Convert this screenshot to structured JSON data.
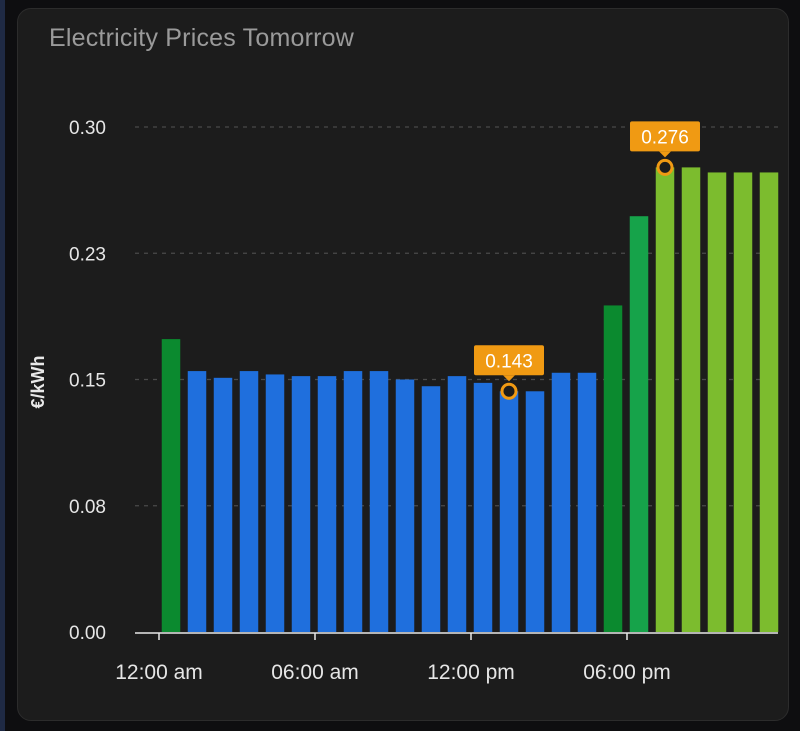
{
  "card": {
    "title": "Electricity Prices Tomorrow"
  },
  "chart_data": {
    "type": "bar",
    "title": "Electricity Prices Tomorrow",
    "ylabel": "€/kWh",
    "xlabel": "",
    "ylim": [
      0,
      0.3
    ],
    "yticks": [
      "0.00",
      "0.08",
      "0.15",
      "0.23",
      "0.30"
    ],
    "xticks": [
      {
        "hour": 0,
        "label": "12:00 am"
      },
      {
        "hour": 6,
        "label": "06:00 am"
      },
      {
        "hour": 12,
        "label": "12:00 pm"
      },
      {
        "hour": 18,
        "label": "06:00 pm"
      }
    ],
    "grid": true,
    "colors": {
      "blue": "#1f6fdd",
      "dark_green": "#0b8a2f",
      "green": "#16a34a",
      "light_green": "#7cbc2e",
      "annotation": "#f09a13"
    },
    "bars": [
      {
        "hour": 0,
        "value": 0.174,
        "color": "dark_green"
      },
      {
        "hour": 1,
        "value": 0.155,
        "color": "blue"
      },
      {
        "hour": 2,
        "value": 0.151,
        "color": "blue"
      },
      {
        "hour": 3,
        "value": 0.155,
        "color": "blue"
      },
      {
        "hour": 4,
        "value": 0.153,
        "color": "blue"
      },
      {
        "hour": 5,
        "value": 0.152,
        "color": "blue"
      },
      {
        "hour": 6,
        "value": 0.152,
        "color": "blue"
      },
      {
        "hour": 7,
        "value": 0.155,
        "color": "blue"
      },
      {
        "hour": 8,
        "value": 0.155,
        "color": "blue"
      },
      {
        "hour": 9,
        "value": 0.15,
        "color": "blue"
      },
      {
        "hour": 10,
        "value": 0.146,
        "color": "blue"
      },
      {
        "hour": 11,
        "value": 0.152,
        "color": "blue"
      },
      {
        "hour": 12,
        "value": 0.148,
        "color": "blue"
      },
      {
        "hour": 13,
        "value": 0.143,
        "color": "blue"
      },
      {
        "hour": 14,
        "value": 0.143,
        "color": "blue"
      },
      {
        "hour": 15,
        "value": 0.154,
        "color": "blue"
      },
      {
        "hour": 16,
        "value": 0.154,
        "color": "blue"
      },
      {
        "hour": 17,
        "value": 0.194,
        "color": "dark_green"
      },
      {
        "hour": 18,
        "value": 0.247,
        "color": "green"
      },
      {
        "hour": 19,
        "value": 0.276,
        "color": "light_green"
      },
      {
        "hour": 20,
        "value": 0.276,
        "color": "light_green"
      },
      {
        "hour": 21,
        "value": 0.273,
        "color": "light_green"
      },
      {
        "hour": 22,
        "value": 0.273,
        "color": "light_green"
      },
      {
        "hour": 23,
        "value": 0.273,
        "color": "light_green"
      }
    ],
    "annotations": [
      {
        "hour": 13,
        "value": 0.143,
        "label": "0.143",
        "kind": "min"
      },
      {
        "hour": 19,
        "value": 0.276,
        "label": "0.276",
        "kind": "max"
      }
    ]
  }
}
